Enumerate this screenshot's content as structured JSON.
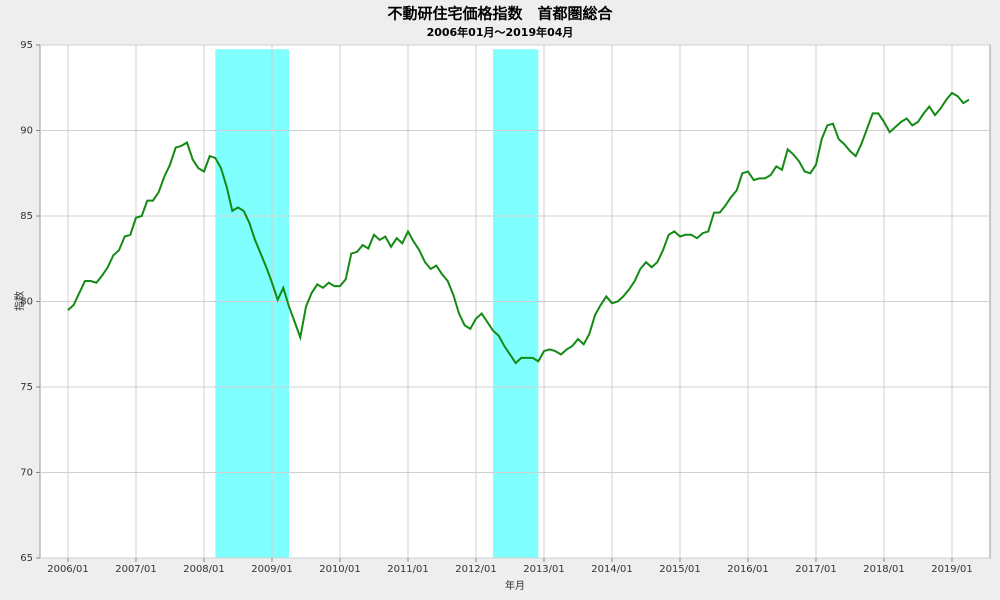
{
  "chart_data": {
    "type": "line",
    "title": "不動研住宅価格指数　首都圏総合",
    "subtitle": "2006年01月～2019年04月",
    "x_label": "年月",
    "y_label": "指数",
    "color": "#138a13",
    "shade_color": "#80ffff",
    "grid": true,
    "ylim": [
      65,
      95
    ],
    "yticks": [
      65,
      70,
      75,
      80,
      85,
      90,
      95
    ],
    "shaded": [
      [
        26,
        39
      ],
      [
        75,
        83
      ]
    ],
    "categories": [
      "2006/01",
      null,
      null,
      null,
      null,
      null,
      null,
      null,
      null,
      null,
      null,
      null,
      "2007/01",
      null,
      null,
      null,
      null,
      null,
      null,
      null,
      null,
      null,
      null,
      null,
      "2008/01",
      null,
      null,
      null,
      null,
      null,
      null,
      null,
      null,
      null,
      null,
      null,
      "2009/01",
      null,
      null,
      null,
      null,
      null,
      null,
      null,
      null,
      null,
      null,
      null,
      "2010/01",
      null,
      null,
      null,
      null,
      null,
      null,
      null,
      null,
      null,
      null,
      null,
      "2011/01",
      null,
      null,
      null,
      null,
      null,
      null,
      null,
      null,
      null,
      null,
      null,
      "2012/01",
      null,
      null,
      null,
      null,
      null,
      null,
      null,
      null,
      null,
      null,
      null,
      "2013/01",
      null,
      null,
      null,
      null,
      null,
      null,
      null,
      null,
      null,
      null,
      null,
      "2014/01",
      null,
      null,
      null,
      null,
      null,
      null,
      null,
      null,
      null,
      null,
      null,
      "2015/01",
      null,
      null,
      null,
      null,
      null,
      null,
      null,
      null,
      null,
      null,
      null,
      "2016/01",
      null,
      null,
      null,
      null,
      null,
      null,
      null,
      null,
      null,
      null,
      null,
      "2017/01",
      null,
      null,
      null,
      null,
      null,
      null,
      null,
      null,
      null,
      null,
      null,
      "2018/01",
      null,
      null,
      null,
      null,
      null,
      null,
      null,
      null,
      null,
      null,
      null,
      "2019/01",
      null,
      null,
      null
    ],
    "values": [
      79.5,
      79.8,
      80.5,
      81.2,
      81.2,
      81.1,
      81.5,
      82.0,
      82.7,
      83.0,
      83.8,
      83.9,
      84.9,
      85.0,
      85.9,
      85.9,
      86.4,
      87.3,
      88.0,
      89.0,
      89.1,
      89.3,
      88.3,
      87.8,
      87.6,
      88.5,
      88.4,
      87.8,
      86.7,
      85.3,
      85.5,
      85.3,
      84.6,
      83.6,
      82.8,
      82.0,
      81.1,
      80.1,
      80.8,
      79.7,
      78.8,
      77.9,
      79.7,
      80.5,
      81.0,
      80.8,
      81.1,
      80.9,
      80.9,
      81.3,
      82.8,
      82.9,
      83.3,
      83.1,
      83.9,
      83.6,
      83.8,
      83.2,
      83.7,
      83.4,
      84.1,
      83.5,
      83.0,
      82.3,
      81.9,
      82.1,
      81.6,
      81.2,
      80.4,
      79.3,
      78.6,
      78.4,
      79.0,
      79.3,
      78.8,
      78.3,
      78.0,
      77.4,
      76.9,
      76.4,
      76.7,
      76.7,
      76.7,
      76.5,
      77.1,
      77.2,
      77.1,
      76.9,
      77.2,
      77.4,
      77.8,
      77.5,
      78.1,
      79.2,
      79.8,
      80.3,
      79.9,
      80.0,
      80.3,
      80.7,
      81.2,
      81.9,
      82.3,
      82.0,
      82.3,
      83.0,
      83.9,
      84.1,
      83.8,
      83.9,
      83.9,
      83.7,
      84.0,
      84.1,
      85.2,
      85.2,
      85.6,
      86.1,
      86.5,
      87.5,
      87.6,
      87.1,
      87.2,
      87.2,
      87.4,
      87.9,
      87.7,
      88.9,
      88.6,
      88.2,
      87.6,
      87.5,
      88.0,
      89.5,
      90.3,
      90.4,
      89.5,
      89.2,
      88.8,
      88.5,
      89.2,
      90.1,
      91.0,
      91.0,
      90.5,
      89.9,
      90.2,
      90.5,
      90.7,
      90.3,
      90.5,
      91.0,
      91.4,
      90.9,
      91.3,
      91.8,
      92.2,
      92.0,
      91.6,
      91.8
    ]
  }
}
